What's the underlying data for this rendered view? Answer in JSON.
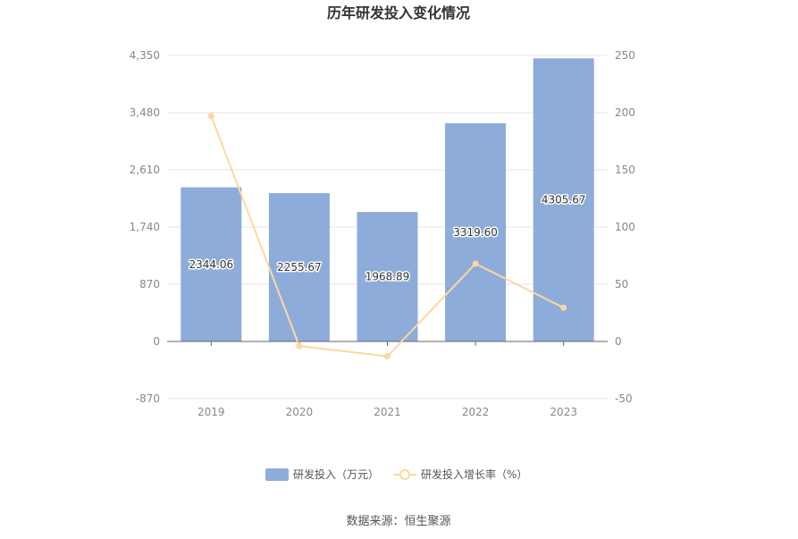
{
  "chart_data": {
    "type": "bar",
    "title": "历年研发投入变化情况",
    "categories": [
      "2019",
      "2020",
      "2021",
      "2022",
      "2023"
    ],
    "series": [
      {
        "name": "研发投入（万元）",
        "type": "bar",
        "axis": "left",
        "color": "#8eacd9",
        "values": [
          2344.06,
          2255.67,
          1968.89,
          3319.6,
          4305.67
        ],
        "labels": [
          "2344.06",
          "2255.67",
          "1968.89",
          "3319.60",
          "4305.67"
        ]
      },
      {
        "name": "研发投入增长率（%）",
        "type": "line",
        "axis": "right",
        "color": "#fcd8a1",
        "values": [
          197.0,
          -4.0,
          -13.0,
          68.0,
          29.5
        ]
      }
    ],
    "y_left": {
      "ylim": [
        -870,
        4350
      ],
      "ticks": [
        -870,
        0,
        870,
        1740,
        2610,
        3480,
        4350
      ],
      "tick_labels": [
        "-870",
        "0",
        "870",
        "1,740",
        "2,610",
        "3,480",
        "4,350"
      ]
    },
    "y_right": {
      "ylim": [
        -50,
        250
      ],
      "ticks": [
        -50,
        0,
        50,
        100,
        150,
        200,
        250
      ],
      "tick_labels": [
        "-50",
        "0",
        "50",
        "100",
        "150",
        "200",
        "250"
      ]
    },
    "grid": true,
    "legend": "bottom-center",
    "source": "数据来源：恒生聚源"
  }
}
